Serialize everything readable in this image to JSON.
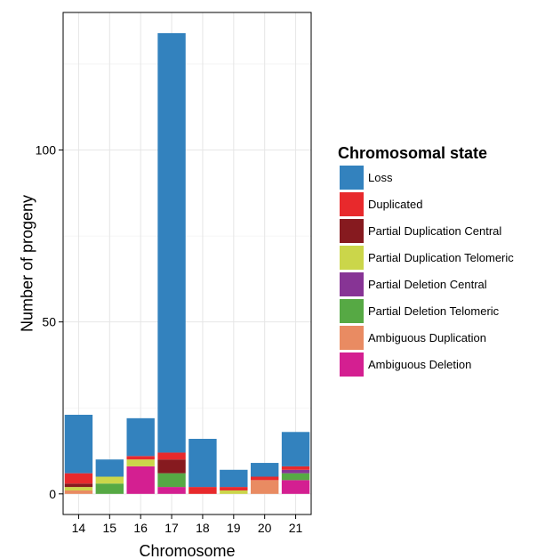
{
  "chart_data": {
    "type": "bar",
    "stacked": true,
    "title": "",
    "xlabel": "Chromosome",
    "ylabel": "Number of progeny",
    "categories": [
      "14",
      "15",
      "16",
      "17",
      "18",
      "19",
      "20",
      "21"
    ],
    "ylim": [
      -6,
      140
    ],
    "y_ticks": [
      0,
      50,
      100
    ],
    "grid": true,
    "legend": {
      "title": "Chromosomal state",
      "position": "right"
    },
    "series": [
      {
        "name": "Ambiguous Deletion",
        "color": "#d41f91",
        "values": [
          0,
          0,
          8,
          2,
          0,
          0,
          0,
          4
        ]
      },
      {
        "name": "Ambiguous Duplication",
        "color": "#e98b62",
        "values": [
          1,
          0,
          0,
          0,
          0,
          0,
          4,
          0
        ]
      },
      {
        "name": "Partial Deletion Telomeric",
        "color": "#56a944",
        "values": [
          0,
          3,
          0,
          4,
          0,
          0,
          0,
          2
        ]
      },
      {
        "name": "Partial Deletion Central",
        "color": "#873495",
        "values": [
          0,
          0,
          0,
          0,
          0,
          0,
          0,
          1
        ]
      },
      {
        "name": "Partial Duplication Telomeric",
        "color": "#cbd64a",
        "values": [
          1,
          2,
          2,
          0,
          0,
          1,
          0,
          0
        ]
      },
      {
        "name": "Partial Duplication Central",
        "color": "#861a1f",
        "values": [
          1,
          0,
          0,
          4,
          0,
          0,
          0,
          0
        ]
      },
      {
        "name": "Duplicated",
        "color": "#e8292c",
        "values": [
          3,
          0,
          1,
          2,
          2,
          1,
          1,
          1
        ]
      },
      {
        "name": "Loss",
        "color": "#3382be",
        "values": [
          17,
          5,
          11,
          122,
          14,
          5,
          4,
          10
        ]
      }
    ],
    "legend_order": [
      "Loss",
      "Duplicated",
      "Partial Duplication Central",
      "Partial Duplication Telomeric",
      "Partial Deletion Central",
      "Partial Deletion Telomeric",
      "Ambiguous Duplication",
      "Ambiguous Deletion"
    ]
  }
}
